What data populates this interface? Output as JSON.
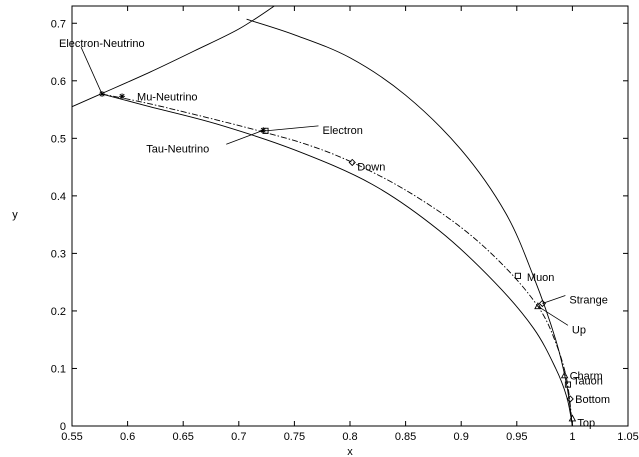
{
  "chart_data": {
    "type": "scatter",
    "title": "",
    "xlabel": "x",
    "ylabel": "y",
    "xlim": [
      0.55,
      1.05
    ],
    "ylim": [
      0,
      0.73
    ],
    "xticks": [
      "0.55",
      "0.6",
      "0.65",
      "0.7",
      "0.75",
      "0.8",
      "0.85",
      "0.9",
      "0.95",
      "1",
      "1.05"
    ],
    "yticks": [
      "0",
      "0.1",
      "0.2",
      "0.3",
      "0.4",
      "0.5",
      "0.6",
      "0.7"
    ],
    "grid": false,
    "legend": "none",
    "series": [
      {
        "style": "solid",
        "x": [
          0.55,
          0.577,
          0.62,
          0.66,
          0.7,
          0.732
        ],
        "y": [
          0.555,
          0.578,
          0.615,
          0.652,
          0.69,
          0.73
        ]
      },
      {
        "style": "solid",
        "x": [
          0.707,
          0.75,
          0.8,
          0.85,
          0.9,
          0.94,
          0.965,
          0.985,
          0.995,
          1.0
        ],
        "y": [
          0.707,
          0.68,
          0.64,
          0.575,
          0.48,
          0.37,
          0.26,
          0.15,
          0.07,
          0.0
        ]
      },
      {
        "style": "solid",
        "x": [
          0.577,
          0.62,
          0.68,
          0.75,
          0.82,
          0.88,
          0.93,
          0.965,
          0.985,
          0.995,
          1.0
        ],
        "y": [
          0.577,
          0.555,
          0.525,
          0.48,
          0.42,
          0.34,
          0.25,
          0.17,
          0.1,
          0.05,
          0.0
        ]
      },
      {
        "style": "dashdot",
        "x": [
          0.577,
          0.62,
          0.68,
          0.72,
          0.76,
          0.8,
          0.85,
          0.9,
          0.94,
          0.97,
          0.985,
          0.995,
          1.0
        ],
        "y": [
          0.577,
          0.56,
          0.532,
          0.512,
          0.49,
          0.46,
          0.41,
          0.345,
          0.275,
          0.205,
          0.145,
          0.08,
          0.0
        ]
      }
    ],
    "points": [
      {
        "label": "Electron-Neutrino",
        "x": 0.577,
        "y": 0.577,
        "marker": "star"
      },
      {
        "label": "Mu-Neutrino",
        "x": 0.595,
        "y": 0.573,
        "marker": "star"
      },
      {
        "label": "Tau-Neutrino",
        "x": 0.722,
        "y": 0.514,
        "marker": "star"
      },
      {
        "label": "Electron",
        "x": 0.724,
        "y": 0.513,
        "marker": "square"
      },
      {
        "label": "Down",
        "x": 0.802,
        "y": 0.458,
        "marker": "diamond"
      },
      {
        "label": "Muon",
        "x": 0.951,
        "y": 0.261,
        "marker": "square"
      },
      {
        "label": "Strange",
        "x": 0.973,
        "y": 0.213,
        "marker": "diamond"
      },
      {
        "label": "Up",
        "x": 0.969,
        "y": 0.208,
        "marker": "triangle"
      },
      {
        "label": "Charm",
        "x": 0.993,
        "y": 0.088,
        "marker": "triangle"
      },
      {
        "label": "Tauon",
        "x": 0.996,
        "y": 0.072,
        "marker": "square"
      },
      {
        "label": "Bottom",
        "x": 0.998,
        "y": 0.047,
        "marker": "diamond"
      },
      {
        "label": "Top",
        "x": 1.0,
        "y": 0.013,
        "marker": "triangle"
      }
    ]
  }
}
